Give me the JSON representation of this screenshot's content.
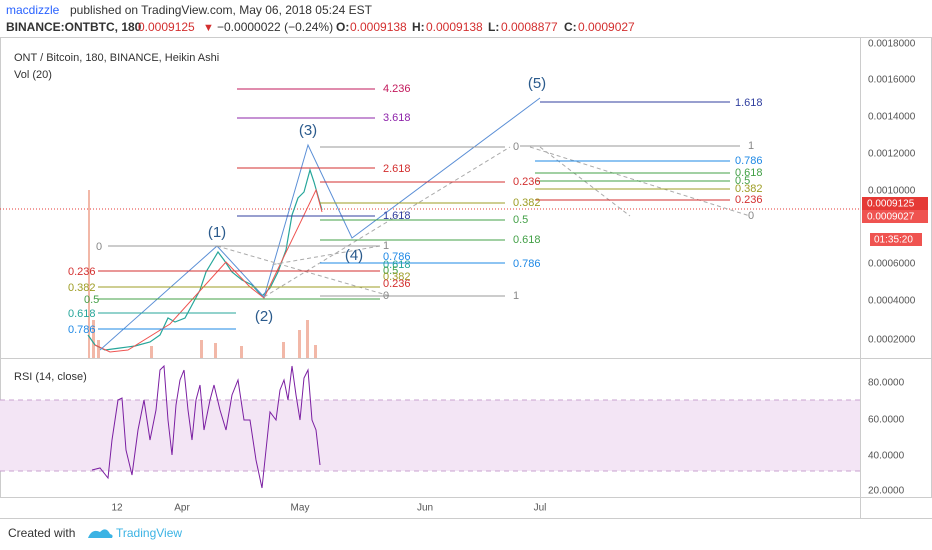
{
  "header": {
    "author": "macdizzle",
    "published": "published on TradingView.com, May 06, 2018 05:24 EST",
    "symbol": "BINANCE:ONTBTC, 180",
    "last": "0.0009125",
    "arrow": "▼",
    "change": "−0.0000022 (−0.24%)",
    "o_label": "O:",
    "o": "0.0009138",
    "h_label": "H:",
    "h": "0.0009138",
    "l_label": "L:",
    "l": "0.0008877",
    "c_label": "C:",
    "c": "0.0009027"
  },
  "pane": {
    "title": "ONT / Bitcoin, 180, BINANCE, Heikin Ashi",
    "volume": "Vol (20)",
    "rsi": "RSI (14, close)"
  },
  "price_axis": [
    "0.0018000",
    "0.0016000",
    "0.0014000",
    "0.0012000",
    "0.0010000",
    "0.0006000",
    "0.0004000",
    "0.0002000"
  ],
  "price_badges": {
    "last": "0.0009125",
    "close": "0.0009027",
    "countdown": "01:35:20"
  },
  "rsi_axis": [
    "80.0000",
    "60.0000",
    "40.0000",
    "20.0000"
  ],
  "time_axis": [
    "12",
    "Apr",
    "May",
    "Jun",
    "Jul"
  ],
  "waves": [
    "(1)",
    "(2)",
    "(3)",
    "(4)",
    "(5)"
  ],
  "fibs": {
    "left": [
      "0",
      "0.236",
      "0.382",
      "0.5",
      "0.618",
      "0.786"
    ],
    "extension": [
      "4.236",
      "3.618",
      "2.618",
      "1.618"
    ],
    "retrace": [
      "0.236",
      "0.382",
      "0.5",
      "0.618",
      "0.786"
    ],
    "small": [
      "1",
      "0.786",
      "0.618",
      "0.5",
      "0.382",
      "0.236",
      "0",
      "1"
    ],
    "right": [
      "1.618",
      "0",
      "1",
      "0.786",
      "0.618",
      "0.5",
      "0.382",
      "0.236",
      "0"
    ]
  },
  "footer": {
    "created": "Created with",
    "brand": "TradingView"
  }
}
